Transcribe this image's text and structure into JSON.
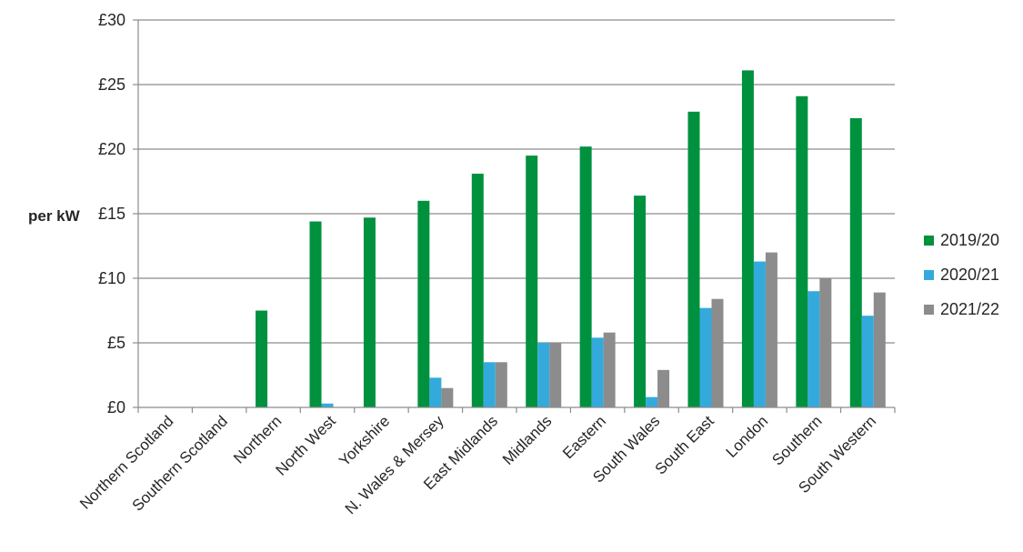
{
  "chart_data": {
    "type": "bar",
    "title": "",
    "xlabel": "",
    "ylabel": "per kW",
    "ylim": [
      0,
      30
    ],
    "y_ticks": [
      "£0",
      "£5",
      "£10",
      "£15",
      "£20",
      "£25",
      "£30"
    ],
    "y_tick_values": [
      0,
      5,
      10,
      15,
      20,
      25,
      30
    ],
    "grid": true,
    "legend_position": "right",
    "categories": [
      "Northern Scotland",
      "Southern Scotland",
      "Northern",
      "North West",
      "Yorkshire",
      "N. Wales & Mersey",
      "East Midlands",
      "Midlands",
      "Eastern",
      "South Wales",
      "South East",
      "London",
      "Southern",
      "South Western"
    ],
    "series": [
      {
        "name": "2019/20",
        "color": "#00913f",
        "values": [
          0,
          0,
          7.5,
          14.4,
          14.7,
          16.0,
          18.1,
          19.5,
          20.2,
          16.4,
          22.9,
          26.1,
          24.1,
          22.4
        ]
      },
      {
        "name": "2020/21",
        "color": "#34aadc",
        "values": [
          0,
          0,
          0,
          0.3,
          0,
          2.3,
          3.5,
          5.0,
          5.4,
          0.8,
          7.7,
          11.3,
          9.0,
          7.1
        ]
      },
      {
        "name": "2021/22",
        "color": "#8c8c8c",
        "values": [
          0,
          0,
          0,
          0,
          0,
          1.5,
          3.5,
          5.0,
          5.8,
          2.9,
          8.4,
          12.0,
          10.0,
          8.9
        ]
      }
    ]
  }
}
